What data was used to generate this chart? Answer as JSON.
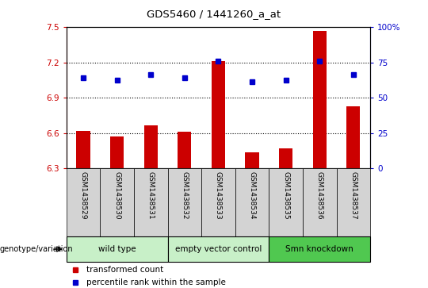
{
  "title": "GDS5460 / 1441260_a_at",
  "samples": [
    "GSM1438529",
    "GSM1438530",
    "GSM1438531",
    "GSM1438532",
    "GSM1438533",
    "GSM1438534",
    "GSM1438535",
    "GSM1438536",
    "GSM1438537"
  ],
  "red_values": [
    6.62,
    6.57,
    6.67,
    6.61,
    7.21,
    6.44,
    6.47,
    7.47,
    6.83
  ],
  "blue_values": [
    7.07,
    7.05,
    7.1,
    7.07,
    7.21,
    7.04,
    7.05,
    7.21,
    7.1
  ],
  "ylim_left": [
    6.3,
    7.5
  ],
  "ylim_right": [
    0,
    100
  ],
  "yticks_left": [
    6.3,
    6.6,
    6.9,
    7.2,
    7.5
  ],
  "yticks_right": [
    0,
    25,
    50,
    75,
    100
  ],
  "group_ranges": [
    [
      0,
      2,
      "wild type",
      "#c8f0c8"
    ],
    [
      3,
      5,
      "empty vector control",
      "#c8f0c8"
    ],
    [
      6,
      8,
      "Smn knockdown",
      "#50c850"
    ]
  ],
  "bar_color": "#cc0000",
  "dot_color": "#0000cc",
  "bg_color": "#d3d3d3",
  "plot_bg": "#ffffff",
  "left_label_color": "#cc0000",
  "right_label_color": "#0000cc",
  "legend_red": "transformed count",
  "legend_blue": "percentile rank within the sample",
  "genotype_label": "genotype/variation"
}
